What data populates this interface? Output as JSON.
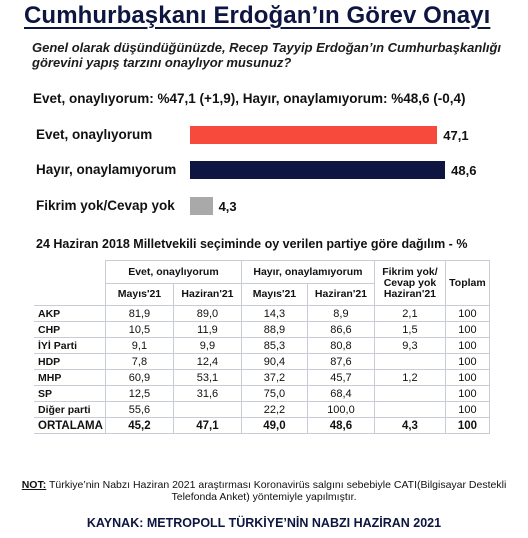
{
  "title": "Cumhurbaşkanı Erdoğan’ın Görev Onayı",
  "question": "Genel olarak düşündüğünüzde, Recep Tayyip Erdoğan’ın Cumhurbaşkanlığı görevini yapış tarzını onaylıyor musunuz?",
  "summary": "Evet, onaylıyorum: %47,1 (+1,9), Hayır, onaylamıyorum: %48,6 (-0,4)",
  "chart_data": {
    "type": "bar",
    "orientation": "horizontal",
    "categories": [
      "Evet, onaylıyorum",
      "Hayır, onaylamıyorum",
      "Fikrim yok/Cevap yok"
    ],
    "values": [
      47.1,
      48.6,
      4.3
    ],
    "value_labels": [
      "47,1",
      "48,6",
      "4,3"
    ],
    "colors": [
      "#f84a3c",
      "#0d1540",
      "#a9a9a9"
    ],
    "xlim": [
      0,
      50
    ]
  },
  "table": {
    "subtitle": "24 Haziran 2018 Milletvekili seçiminde oy verilen partiye göre dağılım - %",
    "groups": [
      "Evet, onaylıyorum",
      "Hayır, onaylamıyorum",
      "Fikrim yok/ Cevap yok Haziran'21",
      "Toplam"
    ],
    "subheaders": [
      "Mayıs'21",
      "Haziran'21",
      "Mayıs'21",
      "Haziran'21"
    ],
    "rows": [
      {
        "party": "AKP",
        "cells": [
          "81,9",
          "89,0",
          "14,3",
          "8,9",
          "2,1",
          "100"
        ]
      },
      {
        "party": "CHP",
        "cells": [
          "10,5",
          "11,9",
          "88,9",
          "86,6",
          "1,5",
          "100"
        ]
      },
      {
        "party": "İYİ Parti",
        "cells": [
          "9,1",
          "9,9",
          "85,3",
          "80,8",
          "9,3",
          "100"
        ]
      },
      {
        "party": "HDP",
        "cells": [
          "7,8",
          "12,4",
          "90,4",
          "87,6",
          "",
          "100"
        ]
      },
      {
        "party": "MHP",
        "cells": [
          "60,9",
          "53,1",
          "37,2",
          "45,7",
          "1,2",
          "100"
        ]
      },
      {
        "party": "SP",
        "cells": [
          "12,5",
          "31,6",
          "75,0",
          "68,4",
          "",
          "100"
        ]
      },
      {
        "party": "Diğer parti",
        "cells": [
          "55,6",
          "",
          "22,2",
          "100,0",
          "",
          "100"
        ]
      },
      {
        "party": "ORTALAMA",
        "cells": [
          "45,2",
          "47,1",
          "49,0",
          "48,6",
          "4,3",
          "100"
        ]
      }
    ]
  },
  "note": {
    "label": "NOT:",
    "text": " Türkiye’nin Nabzı Haziran 2021 araştırması Koronavirüs salgını sebebiyle CATI(Bilgisayar Destekli Telefonda Anket) yöntemiyle yapılmıştır."
  },
  "source": "KAYNAK: METROPOLL TÜRKİYE’NİN NABZI HAZİRAN 2021"
}
